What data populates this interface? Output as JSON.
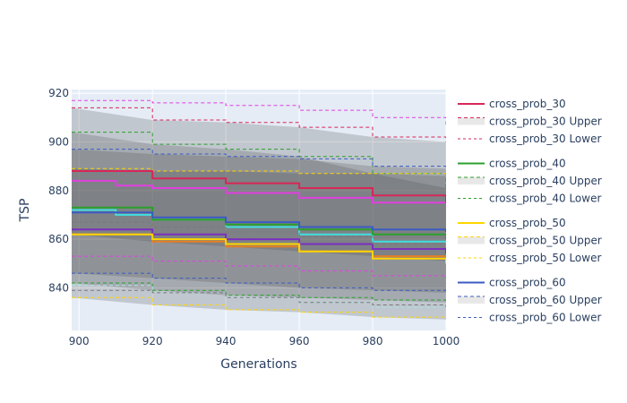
{
  "chart_data": {
    "type": "line",
    "title": "",
    "xlabel": "Generations",
    "ylabel": "TSP",
    "xlim": [
      898,
      1000
    ],
    "ylim": [
      822.5,
      921.5
    ],
    "xticks": [
      900,
      920,
      940,
      960,
      980,
      1000
    ],
    "yticks": [
      840,
      860,
      880,
      900,
      920
    ],
    "grid": true,
    "legend_position": "right",
    "bands": [
      {
        "name": "cross_prob_30",
        "color": "#d62758",
        "x": [
          898,
          920,
          940,
          960,
          980,
          1000
        ],
        "mean": [
          888,
          885,
          883,
          881,
          878,
          875
        ],
        "upper": [
          914,
          909,
          908,
          906,
          902,
          900
        ],
        "lower": [
          862,
          859,
          857,
          855,
          853,
          851
        ]
      },
      {
        "name": "cross_prob_40",
        "color": "#2ca02c",
        "x": [
          898,
          920,
          940,
          960,
          980,
          1000
        ],
        "mean": [
          873,
          868,
          866,
          864,
          862,
          860
        ],
        "upper": [
          904,
          899,
          897,
          894,
          887,
          881
        ],
        "lower": [
          842,
          839,
          837,
          836,
          835,
          834
        ]
      },
      {
        "name": "cross_prob_50",
        "color": "#ffd600",
        "x": [
          898,
          920,
          940,
          960,
          980,
          1000
        ],
        "mean": [
          862,
          860,
          858,
          855,
          852,
          850
        ],
        "upper": [
          889,
          888,
          888,
          887,
          887,
          886
        ],
        "lower": [
          836,
          833,
          831,
          830,
          828,
          827
        ]
      },
      {
        "name": "cross_prob_60",
        "color": "#3b5bc2",
        "x": [
          898,
          920,
          940,
          960,
          980,
          1000
        ],
        "mean": [
          871,
          869,
          867,
          865,
          864,
          863
        ],
        "upper": [
          897,
          895,
          894,
          893,
          890,
          889
        ],
        "lower": [
          846,
          844,
          842,
          840,
          839,
          838
        ]
      }
    ],
    "extra_lines": [
      {
        "color": "#e040e0",
        "x": [
          898,
          910,
          920,
          940,
          960,
          980,
          1000
        ],
        "y": [
          917,
          917,
          916,
          915,
          913,
          910,
          906
        ],
        "dash": true
      },
      {
        "color": "#e040e0",
        "x": [
          898,
          910,
          920,
          940,
          960,
          980,
          1000
        ],
        "y": [
          884,
          882,
          881,
          879,
          877,
          875,
          873
        ],
        "dash": false
      },
      {
        "color": "#e040e0",
        "x": [
          898,
          920,
          940,
          960,
          980,
          1000
        ],
        "y": [
          853,
          851,
          849,
          847,
          845,
          844
        ],
        "dash": true
      },
      {
        "color": "#7b2fbe",
        "x": [
          898,
          920,
          940,
          960,
          980,
          1000
        ],
        "y": [
          864,
          862,
          860,
          858,
          856,
          854
        ],
        "dash": false
      },
      {
        "color": "#e67e22",
        "x": [
          898,
          920,
          940,
          960,
          980,
          1000
        ],
        "y": [
          862,
          859,
          857,
          855,
          853,
          851
        ],
        "dash": false
      },
      {
        "color": "#40e0e0",
        "x": [
          898,
          910,
          920,
          940,
          960,
          980,
          1000
        ],
        "y": [
          872,
          870,
          868,
          865,
          862,
          859,
          857
        ],
        "dash": false
      },
      {
        "color": "#a6e3e0",
        "x": [
          898,
          920,
          940,
          960,
          980,
          1000
        ],
        "y": [
          841,
          838,
          836,
          834,
          832,
          831
        ],
        "dash": true
      },
      {
        "color": "#7a7a7a",
        "x": [
          898,
          920,
          940,
          960,
          980,
          1000
        ],
        "y": [
          867,
          865,
          863,
          861,
          858,
          856
        ],
        "dash": true
      },
      {
        "color": "#7a7a7a",
        "x": [
          898,
          920,
          940,
          960,
          980,
          1000
        ],
        "y": [
          839,
          838,
          836,
          834,
          833,
          832
        ],
        "dash": true
      }
    ],
    "legend": [
      {
        "label": "cross_prob_30",
        "color": "#d62758",
        "kind": "mean"
      },
      {
        "label": "cross_prob_30 Upper",
        "color": "#d62758",
        "kind": "upper"
      },
      {
        "label": "cross_prob_30 Lower",
        "color": "#d62758",
        "kind": "lower"
      },
      {
        "label": "cross_prob_40",
        "color": "#2ca02c",
        "kind": "mean"
      },
      {
        "label": "cross_prob_40 Upper",
        "color": "#2ca02c",
        "kind": "upper"
      },
      {
        "label": "cross_prob_40 Lower",
        "color": "#2ca02c",
        "kind": "lower"
      },
      {
        "label": "cross_prob_50",
        "color": "#ffd600",
        "kind": "mean"
      },
      {
        "label": "cross_prob_50 Upper",
        "color": "#ffd600",
        "kind": "upper"
      },
      {
        "label": "cross_prob_50 Lower",
        "color": "#ffd600",
        "kind": "lower"
      },
      {
        "label": "cross_prob_60",
        "color": "#3b5bc2",
        "kind": "mean"
      },
      {
        "label": "cross_prob_60 Upper",
        "color": "#3b5bc2",
        "kind": "upper"
      },
      {
        "label": "cross_prob_60 Lower",
        "color": "#3b5bc2",
        "kind": "lower"
      }
    ]
  }
}
